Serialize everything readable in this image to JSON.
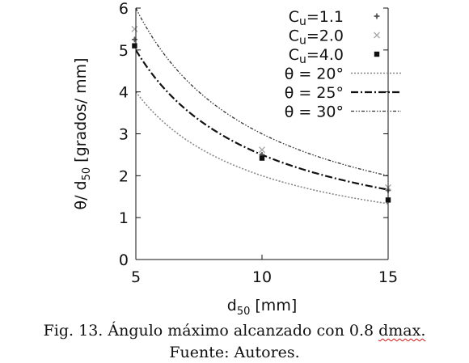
{
  "chart_data": {
    "type": "scatter",
    "title": "",
    "xlabel": "d50 [mm]",
    "ylabel": "θ/ d50 [grados/ mm]",
    "xlim": [
      5,
      15
    ],
    "ylim": [
      0,
      6
    ],
    "xticks": [
      "5",
      "10",
      "15"
    ],
    "yticks": [
      "0",
      "1",
      "2",
      "3",
      "4",
      "5",
      "6"
    ],
    "grid": false,
    "legend_position": "top-right",
    "points_series": [
      {
        "name": "Cu=1.1",
        "marker": "plus",
        "color": "#555555",
        "points": [
          [
            4.95,
            5.25
          ],
          [
            10,
            2.5
          ],
          [
            15,
            1.65
          ]
        ]
      },
      {
        "name": "Cu=2.0",
        "marker": "cross",
        "color": "#aaaaaa",
        "points": [
          [
            4.95,
            5.5
          ],
          [
            10,
            2.62
          ],
          [
            15,
            1.72
          ]
        ]
      },
      {
        "name": "Cu=4.0",
        "marker": "square",
        "color": "#111111",
        "points": [
          [
            4.95,
            5.1
          ],
          [
            10,
            2.42
          ],
          [
            15,
            1.42
          ]
        ]
      }
    ],
    "line_series": [
      {
        "name": "θ = 20°",
        "k": 20,
        "dash": "2,2",
        "color": "#888888",
        "width": 1.6
      },
      {
        "name": "θ = 25°",
        "k": 25,
        "dash": "9,3,2,3",
        "color": "#111111",
        "width": 2.2
      },
      {
        "name": "θ = 30°",
        "k": 30,
        "dash": "4,2,1.5,2,1.5,2",
        "color": "#333333",
        "width": 1.3
      }
    ]
  },
  "caption": {
    "line1_main": "Fig. 13. Ángulo máximo alcanzado con 0.8 ",
    "line1_flagged": "dmax.",
    "line2": "Fuente: Autores."
  }
}
